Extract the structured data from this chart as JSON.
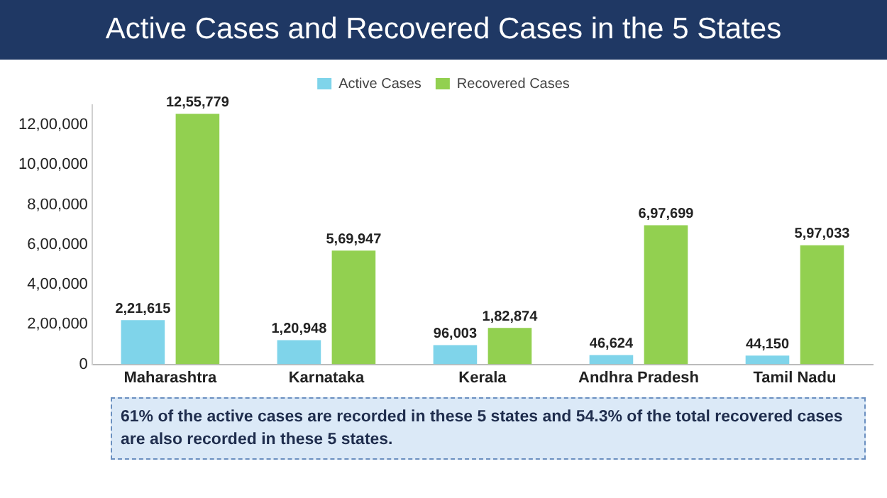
{
  "chart_data": {
    "type": "bar",
    "title": "Active Cases and Recovered Cases in the 5 States",
    "categories": [
      "Maharashtra",
      "Karnataka",
      "Kerala",
      "Andhra Pradesh",
      "Tamil Nadu"
    ],
    "series": [
      {
        "name": "Active Cases",
        "color": "#7fd4ea",
        "values": [
          221615,
          120948,
          96003,
          46624,
          44150
        ],
        "value_labels": [
          "2,21,615",
          "1,20,948",
          "96,003",
          "46,624",
          "44,150"
        ]
      },
      {
        "name": "Recovered Cases",
        "color": "#92d050",
        "values": [
          1255779,
          569947,
          182874,
          697699,
          597033
        ],
        "value_labels": [
          "12,55,779",
          "5,69,947",
          "1,82,874",
          "6,97,699",
          "5,97,033"
        ]
      }
    ],
    "ylim": [
      0,
      1300000
    ],
    "yticks": [
      0,
      {
        "value": 200000,
        "label": "2,00,000"
      },
      {
        "value": 400000,
        "label": "4,00,000"
      },
      {
        "value": 600000,
        "label": "6,00,000"
      },
      {
        "value": 800000,
        "label": "8,00,000"
      },
      {
        "value": 1000000,
        "label": "10,00,000"
      },
      {
        "value": 1200000,
        "label": "12,00,000"
      }
    ],
    "grid": false,
    "legend": "top",
    "annotations": [
      "61% of the active cases are recorded in these 5 states and 54.3% of the total recovered cases are also recorded in these 5 states."
    ]
  }
}
